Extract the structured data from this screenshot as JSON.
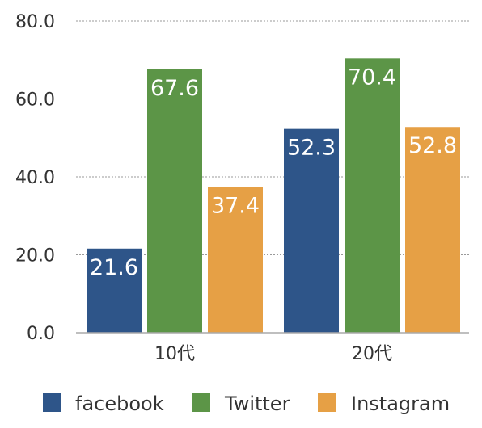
{
  "chart_data": {
    "type": "bar",
    "categories": [
      "10代",
      "20代"
    ],
    "series": [
      {
        "name": "facebook",
        "values": [
          21.6,
          52.3
        ],
        "color": "#2e5589"
      },
      {
        "name": "Twitter",
        "values": [
          67.6,
          70.4
        ],
        "color": "#5c9547"
      },
      {
        "name": "Instagram",
        "values": [
          37.4,
          52.8
        ],
        "color": "#e6a045"
      }
    ],
    "data_labels": [
      [
        "21.6",
        "52.3"
      ],
      [
        "67.6",
        "70.4"
      ],
      [
        "37.4",
        "52.8"
      ]
    ],
    "y_ticks": [
      "0.0",
      "20.0",
      "40.0",
      "60.0",
      "80.0"
    ],
    "y_tick_values": [
      0,
      20,
      40,
      60,
      80
    ],
    "ylim": [
      0,
      80
    ],
    "title": "",
    "xlabel": "",
    "ylabel": "",
    "grid": true,
    "legend_position": "bottom"
  }
}
